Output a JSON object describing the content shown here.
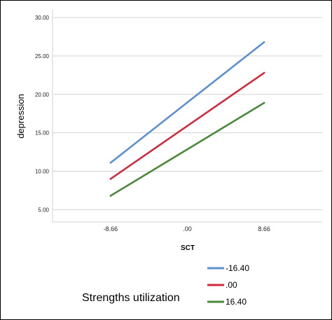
{
  "chart_data": {
    "type": "line",
    "title": "",
    "xlabel": "SCT",
    "ylabel": "depression",
    "x": [
      -8.66,
      0,
      8.66
    ],
    "x_tick_labels": [
      "-8.66",
      ".00",
      "8.66"
    ],
    "y_tick_labels": [
      "5.00",
      "10.00",
      "15.00",
      "20.00",
      "25.00",
      "30.00"
    ],
    "y_ticks": [
      5,
      10,
      15,
      20,
      25,
      30
    ],
    "xlim": [
      -15.2,
      15.2
    ],
    "ylim": [
      3.4,
      31
    ],
    "grid": "horizontal",
    "legend_title": "Strengths utilization",
    "legend_position": "bottom-right",
    "series": [
      {
        "name": "-16.40",
        "color": "#5b8fd4",
        "values": [
          11.1,
          18.95,
          26.8
        ]
      },
      {
        "name": ".00",
        "color": "#cf2a3e",
        "values": [
          9.0,
          15.9,
          22.8
        ]
      },
      {
        "name": "16.40",
        "color": "#4a8a3a",
        "values": [
          6.8,
          12.85,
          18.9
        ]
      }
    ]
  }
}
